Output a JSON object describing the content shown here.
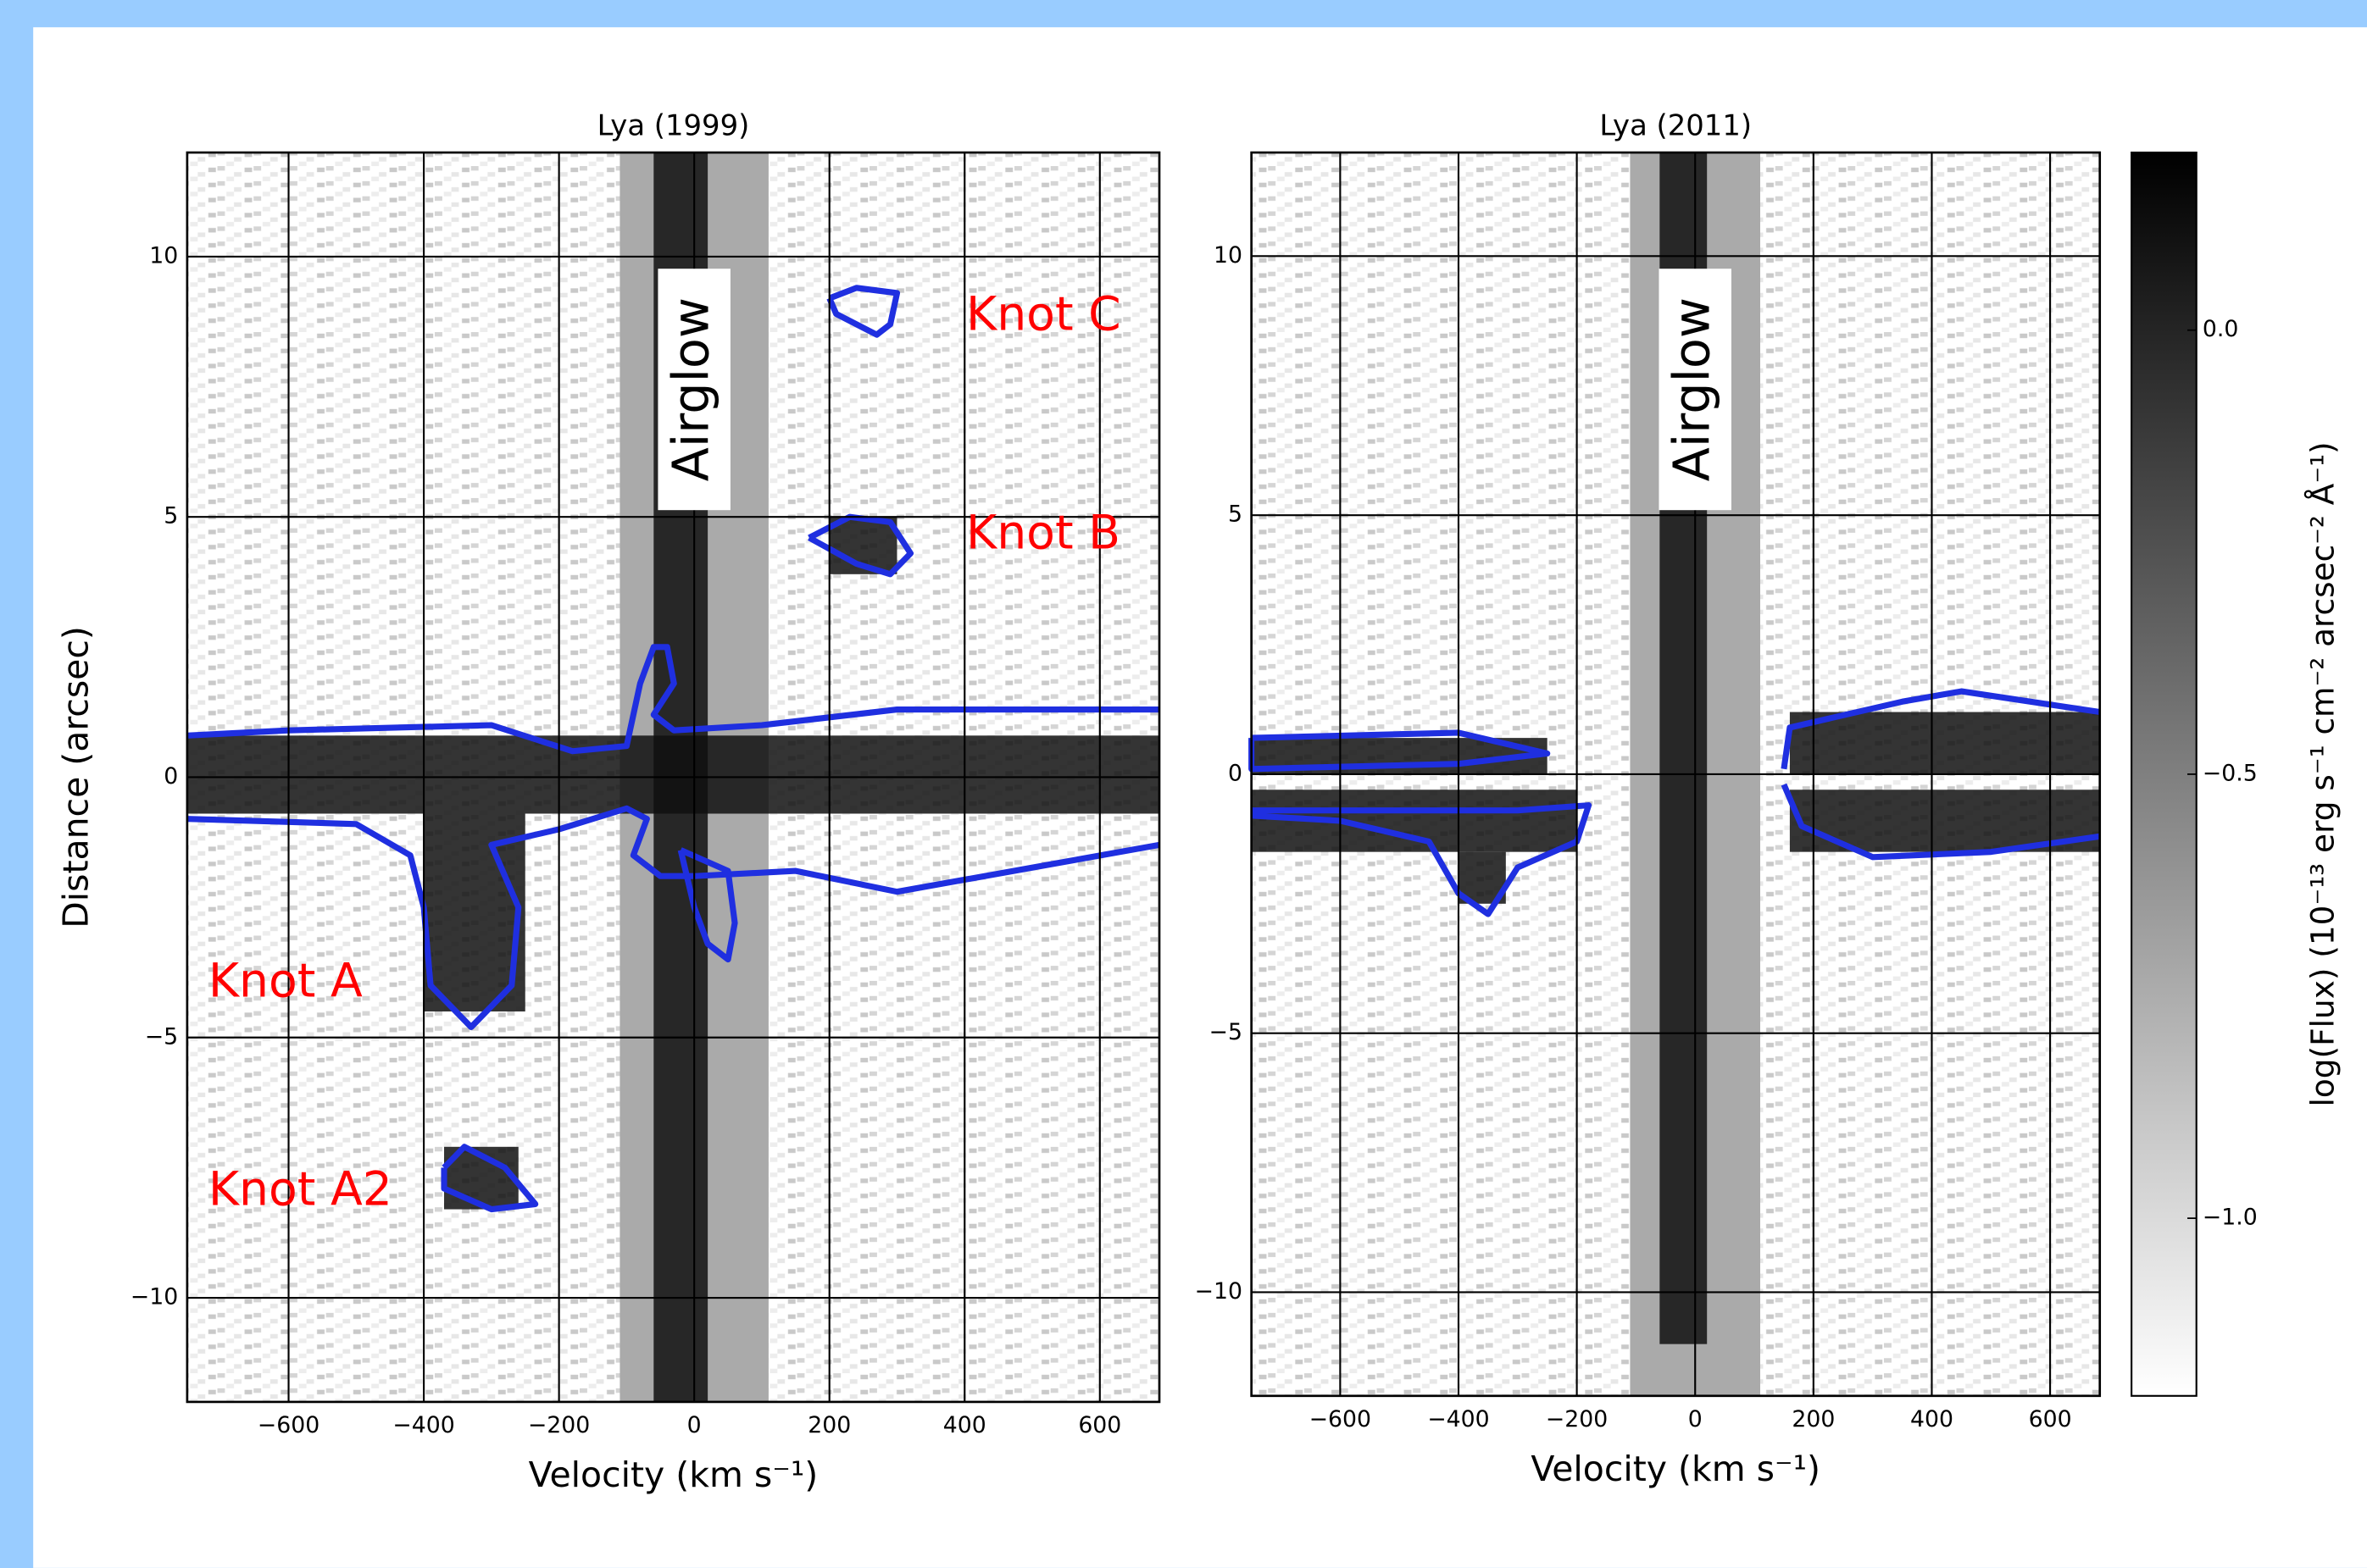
{
  "chart_data": [
    {
      "type": "heatmap",
      "title": "Lya (1999)",
      "xlabel": "Velocity (km s⁻¹)",
      "ylabel": "Distance (arcsec)",
      "xlim": [
        -750,
        688
      ],
      "ylim": [
        -12,
        12
      ],
      "grid": true,
      "xticks": [
        {
          "value": -600,
          "label": "−600"
        },
        {
          "value": -400,
          "label": "−400"
        },
        {
          "value": -200,
          "label": "−200"
        },
        0,
        200,
        400,
        600
      ],
      "yticks": [
        {
          "value": -10,
          "label": "−10"
        },
        {
          "value": -5,
          "label": "−5"
        },
        0,
        5,
        10
      ],
      "airglow": {
        "label": "Airglow",
        "range": [
          -110,
          110
        ],
        "color": "#aaaaaa"
      },
      "dark_regions": [
        [
          -750,
          688,
          -0.7,
          0.8
        ],
        [
          -60,
          20,
          -12,
          12
        ],
        [
          -400,
          -250,
          -4.5,
          -0.7
        ],
        [
          -370,
          -260,
          -8.3,
          -7.1
        ],
        [
          200,
          300,
          3.9,
          5.0
        ]
      ],
      "contour_color": "#1f2fe0",
      "contours": [
        [
          [
            -750,
            0.8
          ],
          [
            -600,
            0.9
          ],
          [
            -300,
            1.0
          ],
          [
            -180,
            0.5
          ],
          [
            -100,
            0.6
          ],
          [
            -80,
            1.8
          ],
          [
            -60,
            2.5
          ],
          [
            -40,
            2.5
          ],
          [
            -30,
            1.8
          ],
          [
            -60,
            1.2
          ],
          [
            -30,
            0.9
          ],
          [
            100,
            1.0
          ],
          [
            300,
            1.3
          ],
          [
            688,
            1.3
          ]
        ],
        [
          [
            -750,
            -0.8
          ],
          [
            -500,
            -0.9
          ],
          [
            -420,
            -1.5
          ],
          [
            -400,
            -2.5
          ],
          [
            -390,
            -4
          ],
          [
            -330,
            -4.8
          ],
          [
            -270,
            -4
          ],
          [
            -260,
            -2.5
          ],
          [
            -300,
            -1.3
          ],
          [
            -200,
            -1.0
          ],
          [
            -100,
            -0.6
          ],
          [
            -70,
            -0.8
          ],
          [
            -90,
            -1.5
          ],
          [
            -50,
            -1.9
          ],
          [
            0,
            -1.9
          ],
          [
            150,
            -1.8
          ],
          [
            300,
            -2.2
          ],
          [
            688,
            -1.3
          ]
        ],
        [
          [
            -370,
            -7.5
          ],
          [
            -340,
            -7.1
          ],
          [
            -280,
            -7.5
          ],
          [
            -235,
            -8.2
          ],
          [
            -300,
            -8.3
          ],
          [
            -370,
            -7.9
          ],
          [
            -370,
            -7.5
          ]
        ],
        [
          [
            170,
            4.6
          ],
          [
            230,
            5.0
          ],
          [
            290,
            4.9
          ],
          [
            320,
            4.3
          ],
          [
            290,
            3.9
          ],
          [
            240,
            4.1
          ],
          [
            170,
            4.6
          ]
        ],
        [
          [
            200,
            9.2
          ],
          [
            240,
            9.4
          ],
          [
            300,
            9.3
          ],
          [
            290,
            8.7
          ],
          [
            270,
            8.5
          ],
          [
            210,
            8.9
          ],
          [
            200,
            9.2
          ]
        ],
        [
          [
            -20,
            -1.4
          ],
          [
            50,
            -1.8
          ],
          [
            60,
            -2.8
          ],
          [
            50,
            -3.5
          ],
          [
            20,
            -3.2
          ],
          [
            0,
            -2.5
          ],
          [
            -20,
            -1.4
          ]
        ]
      ],
      "annotations": [
        "Knot C",
        "Knot B",
        "Knot A",
        "Knot A2"
      ],
      "annotation_color": "#ff0000"
    },
    {
      "type": "heatmap",
      "title": "Lya (2011)",
      "xlabel": "Velocity (km s⁻¹)",
      "xlim": [
        -750,
        684
      ],
      "ylim": [
        -12,
        12
      ],
      "grid": true,
      "xticks": [
        {
          "value": -600,
          "label": "−600"
        },
        {
          "value": -400,
          "label": "−400"
        },
        {
          "value": -200,
          "label": "−200"
        },
        0,
        200,
        400,
        600
      ],
      "yticks": [
        {
          "value": -10,
          "label": "−10"
        },
        {
          "value": -5,
          "label": "−5"
        },
        0,
        5,
        10
      ],
      "airglow": {
        "label": "Airglow",
        "range": [
          -110,
          110
        ],
        "color": "#aaaaaa"
      },
      "dark_regions": [
        [
          -60,
          20,
          -11,
          12
        ],
        [
          -750,
          -250,
          0,
          0.7
        ],
        [
          -750,
          -200,
          -1.5,
          -0.3
        ],
        [
          -400,
          -320,
          -2.5,
          -1.5
        ],
        [
          160,
          684,
          0,
          1.2
        ],
        [
          160,
          684,
          -1.5,
          -0.3
        ]
      ],
      "contour_color": "#1f2fe0",
      "contours": [
        [
          [
            -750,
            0.7
          ],
          [
            -400,
            0.8
          ],
          [
            -250,
            0.4
          ],
          [
            -400,
            0.2
          ],
          [
            -750,
            0.1
          ],
          [
            -750,
            0.7
          ]
        ],
        [
          [
            -750,
            -0.7
          ],
          [
            -300,
            -0.7
          ],
          [
            -180,
            -0.6
          ],
          [
            -200,
            -1.3
          ],
          [
            -300,
            -1.8
          ],
          [
            -350,
            -2.7
          ],
          [
            -400,
            -2.3
          ],
          [
            -450,
            -1.3
          ],
          [
            -600,
            -0.9
          ],
          [
            -750,
            -0.8
          ]
        ],
        [
          [
            150,
            0.1
          ],
          [
            160,
            0.9
          ],
          [
            350,
            1.4
          ],
          [
            450,
            1.6
          ],
          [
            684,
            1.2
          ]
        ],
        [
          [
            150,
            -0.2
          ],
          [
            180,
            -1.0
          ],
          [
            300,
            -1.6
          ],
          [
            500,
            -1.5
          ],
          [
            684,
            -1.2
          ]
        ]
      ],
      "colorbar": {
        "label": "log(Flux) (10⁻¹³ erg s⁻¹ cm⁻² arcsec⁻² Å⁻¹)",
        "lim": [
          -1.2,
          0.2
        ],
        "ticks": [
          {
            "value": 0,
            "label": "0.0"
          },
          {
            "value": -0.5,
            "label": "−0.5"
          },
          {
            "value": -1,
            "label": "−1.0"
          }
        ]
      }
    }
  ]
}
